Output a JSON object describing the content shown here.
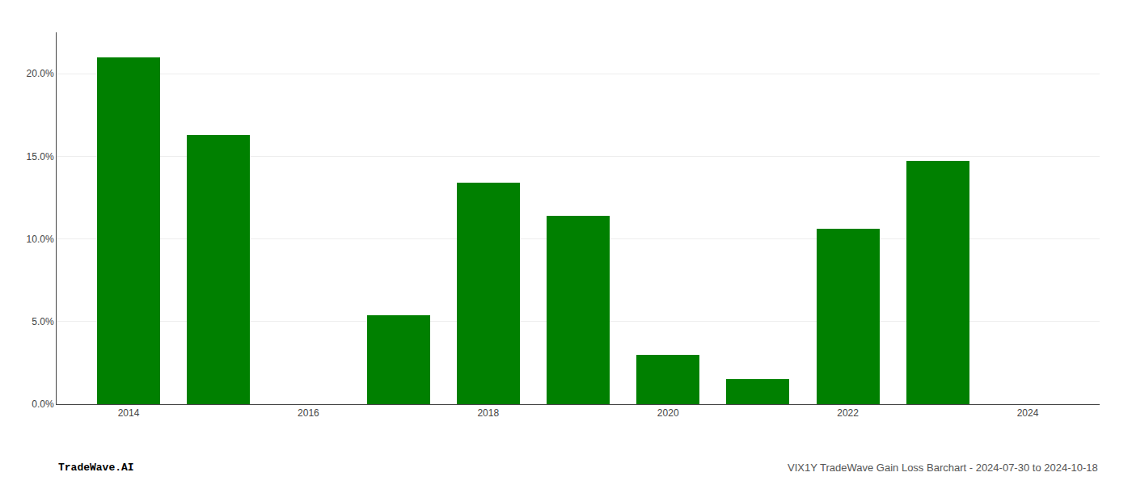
{
  "chart_data": {
    "type": "bar",
    "x": [
      2014,
      2015,
      2016,
      2017,
      2018,
      2019,
      2020,
      2021,
      2022,
      2023,
      2024
    ],
    "values": [
      0.21,
      0.163,
      null,
      0.054,
      0.134,
      0.114,
      0.03,
      0.015,
      0.106,
      0.147,
      null
    ],
    "color": "#008000",
    "xlim": [
      2013.2,
      2024.8
    ],
    "xticks": [
      2014,
      2016,
      2018,
      2020,
      2022,
      2024
    ],
    "ylim": [
      0,
      0.225
    ],
    "yticks": [
      {
        "value": 0.0,
        "label": "0.0%"
      },
      {
        "value": 0.05,
        "label": "5.0%"
      },
      {
        "value": 0.1,
        "label": "10.0%"
      },
      {
        "value": 0.15,
        "label": "15.0%"
      },
      {
        "value": 0.2,
        "label": "20.0%"
      }
    ],
    "grid": true,
    "annotations": [
      "TradeWave.AI",
      "VIX1Y TradeWave Gain Loss Barchart - 2024-07-30 to 2024-10-18"
    ]
  }
}
